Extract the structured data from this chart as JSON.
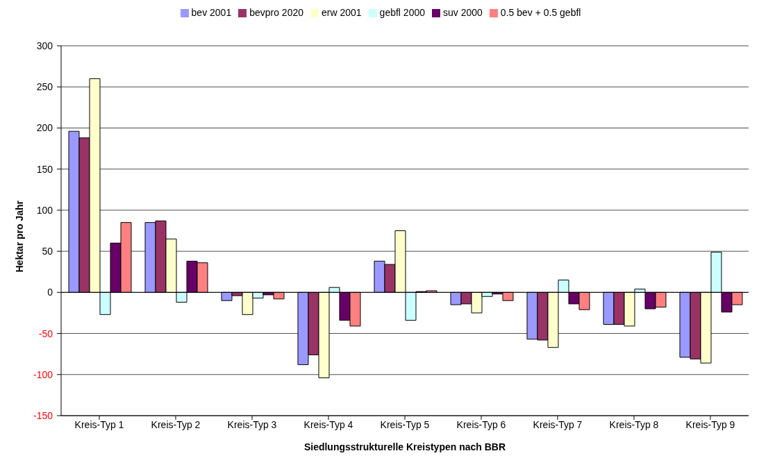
{
  "chart_data": {
    "type": "bar",
    "xlabel": "Siedlungsstrukturelle Kreistypen nach BBR",
    "ylabel": "Hektar pro Jahr",
    "categories": [
      "Kreis-Typ 1",
      "Kreis-Typ 2",
      "Kreis-Typ 3",
      "Kreis-Typ 4",
      "Kreis-Typ 5",
      "Kreis-Typ 6",
      "Kreis-Typ 7",
      "Kreis-Typ 8",
      "Kreis-Typ 9"
    ],
    "series": [
      {
        "name": "bev 2001",
        "color": "#9999ff",
        "values": [
          196,
          85,
          -10,
          -88,
          38,
          -15,
          -57,
          -39,
          -79
        ]
      },
      {
        "name": "bevpro 2020",
        "color": "#993366",
        "values": [
          188,
          87,
          -4,
          -76,
          34,
          -14,
          -58,
          -39,
          -81
        ]
      },
      {
        "name": "erw 2001",
        "color": "#ffffcc",
        "values": [
          260,
          65,
          -27,
          -104,
          75,
          -25,
          -67,
          -41,
          -86
        ]
      },
      {
        "name": "gebfl 2000",
        "color": "#ccffff",
        "values": [
          -27,
          -12,
          -7,
          6,
          -34,
          -5,
          15,
          4,
          49
        ]
      },
      {
        "name": "suv 2000",
        "color": "#660066",
        "values": [
          60,
          38,
          -3,
          -34,
          1,
          -2,
          -14,
          -20,
          -24
        ]
      },
      {
        "name": "0.5 bev + 0.5 gebfl",
        "color": "#ff8080",
        "values": [
          85,
          36,
          -8,
          -41,
          2,
          -10,
          -21,
          -18,
          -15
        ]
      }
    ],
    "ylim": [
      -150,
      300
    ],
    "yticks": [
      -150,
      -100,
      -50,
      0,
      50,
      100,
      150,
      200,
      250,
      300
    ],
    "grid": "y",
    "legend": "top"
  }
}
